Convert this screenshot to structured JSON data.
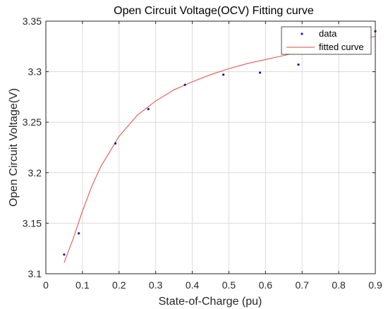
{
  "chart_data": {
    "type": "scatter",
    "title": "Open Circuit Voltage(OCV) Fitting curve",
    "xlabel": "State-of-Charge (pu)",
    "ylabel": "Open Circuit Voltage(V)",
    "xlim": [
      0,
      0.9
    ],
    "ylim": [
      3.1,
      3.35
    ],
    "xticks": [
      "0",
      "0.1",
      "0.2",
      "0.3",
      "0.4",
      "0.5",
      "0.6",
      "0.7",
      "0.8",
      "0.9"
    ],
    "yticks": [
      "3.1",
      "3.15",
      "3.2",
      "3.25",
      "3.3",
      "3.35"
    ],
    "grid": true,
    "legend_position": "top-right",
    "series": [
      {
        "name": "data",
        "kind": "points",
        "color": "#1a1aa6",
        "x": [
          0.05,
          0.09,
          0.19,
          0.28,
          0.38,
          0.485,
          0.585,
          0.69,
          0.9
        ],
        "y": [
          3.119,
          3.14,
          3.229,
          3.263,
          3.287,
          3.297,
          3.299,
          3.307,
          3.34
        ]
      },
      {
        "name": "fitted curve",
        "kind": "line",
        "color": "#e8423f",
        "x": [
          0.05,
          0.075,
          0.1,
          0.125,
          0.15,
          0.2,
          0.25,
          0.3,
          0.35,
          0.4,
          0.45,
          0.5,
          0.55,
          0.6,
          0.65,
          0.7,
          0.75,
          0.8,
          0.85,
          0.9
        ],
        "y": [
          3.111,
          3.135,
          3.162,
          3.186,
          3.206,
          3.236,
          3.257,
          3.271,
          3.282,
          3.29,
          3.297,
          3.303,
          3.308,
          3.312,
          3.316,
          3.32,
          3.324,
          3.327,
          3.331,
          3.335
        ]
      }
    ]
  }
}
